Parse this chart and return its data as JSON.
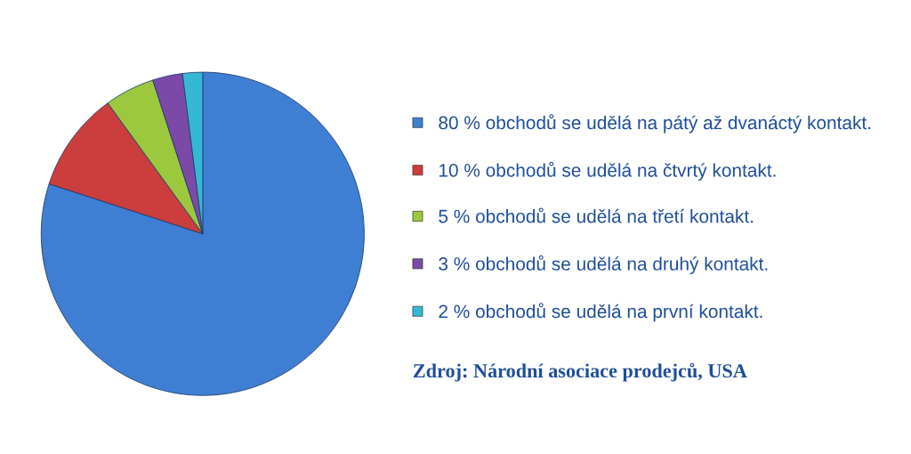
{
  "chart_data": {
    "type": "pie",
    "categories": [
      "80 % obchodů se udělá na pátý až dvanáctý kontakt.",
      "10 % obchodů se udělá na čtvrtý kontakt.",
      "5 % obchodů se udělá na třetí kontakt.",
      "3 % obchodů se udělá na druhý kontakt.",
      "2 % obchodů se udělá na první kontakt."
    ],
    "values": [
      80,
      10,
      5,
      3,
      2
    ],
    "colors": [
      "#3f7fd3",
      "#cc3d3d",
      "#9cc83e",
      "#7b4aa8",
      "#35b8d4"
    ],
    "legend": "right",
    "annotations": [
      "Zdroj: Národní asociace prodejců, USA"
    ]
  }
}
